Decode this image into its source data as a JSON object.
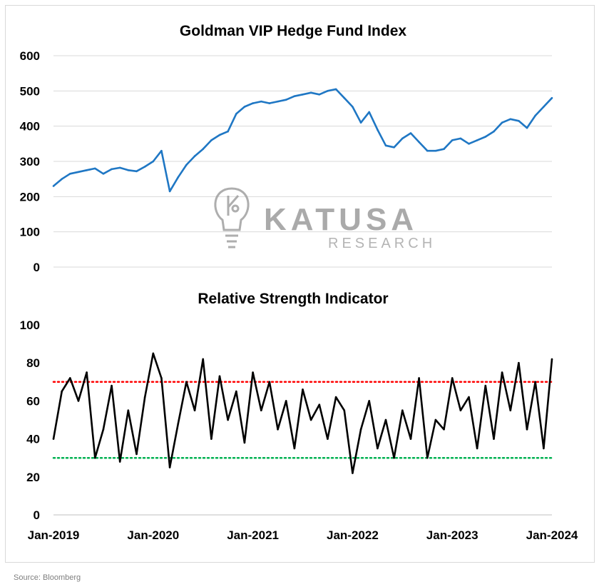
{
  "chart_data": [
    {
      "type": "line",
      "title": "Goldman VIP Hedge Fund Index",
      "xlabel": "",
      "ylabel": "",
      "ylim": [
        0,
        600
      ],
      "yticks": [
        0,
        100,
        200,
        300,
        400,
        500,
        600
      ],
      "xlim": [
        "2019-01",
        "2024-01"
      ],
      "grid": true,
      "color": "#1f77c4",
      "series": [
        {
          "x": [
            "2019-01",
            "2019-02",
            "2019-03",
            "2019-04",
            "2019-05",
            "2019-06",
            "2019-07",
            "2019-08",
            "2019-09",
            "2019-10",
            "2019-11",
            "2019-12",
            "2020-01",
            "2020-02",
            "2020-03",
            "2020-04",
            "2020-05",
            "2020-06",
            "2020-07",
            "2020-08",
            "2020-09",
            "2020-10",
            "2020-11",
            "2020-12",
            "2021-01",
            "2021-02",
            "2021-03",
            "2021-04",
            "2021-05",
            "2021-06",
            "2021-07",
            "2021-08",
            "2021-09",
            "2021-10",
            "2021-11",
            "2021-12",
            "2022-01",
            "2022-02",
            "2022-03",
            "2022-04",
            "2022-05",
            "2022-06",
            "2022-07",
            "2022-08",
            "2022-09",
            "2022-10",
            "2022-11",
            "2022-12",
            "2023-01",
            "2023-02",
            "2023-03",
            "2023-04",
            "2023-05",
            "2023-06",
            "2023-07",
            "2023-08",
            "2023-09",
            "2023-10",
            "2023-11",
            "2023-12",
            "2024-01"
          ],
          "values": [
            230,
            250,
            265,
            270,
            275,
            280,
            265,
            278,
            282,
            275,
            272,
            285,
            300,
            330,
            215,
            255,
            290,
            315,
            335,
            360,
            375,
            385,
            435,
            455,
            465,
            470,
            465,
            470,
            475,
            485,
            490,
            495,
            490,
            500,
            505,
            480,
            455,
            410,
            440,
            390,
            345,
            340,
            365,
            380,
            355,
            330,
            330,
            335,
            360,
            365,
            350,
            360,
            370,
            385,
            410,
            420,
            415,
            395,
            430,
            455,
            480
          ]
        }
      ]
    },
    {
      "type": "line",
      "title": "Relative Strength Indicator",
      "xlabel": "",
      "ylabel": "",
      "ylim": [
        0,
        100
      ],
      "yticks": [
        0,
        20,
        40,
        60,
        80,
        100
      ],
      "xticks": [
        "Jan-2019",
        "Jan-2020",
        "Jan-2021",
        "Jan-2022",
        "Jan-2023",
        "Jan-2024"
      ],
      "xlim": [
        "2019-01",
        "2024-01"
      ],
      "grid": false,
      "color": "#000000",
      "reference_lines": [
        {
          "value": 70,
          "color": "#ff0000",
          "style": "dotted"
        },
        {
          "value": 30,
          "color": "#00b050",
          "style": "dotted"
        }
      ],
      "series": [
        {
          "x": [
            "2019-01",
            "2019-02",
            "2019-03",
            "2019-04",
            "2019-05",
            "2019-06",
            "2019-07",
            "2019-08",
            "2019-09",
            "2019-10",
            "2019-11",
            "2019-12",
            "2020-01",
            "2020-02",
            "2020-03",
            "2020-04",
            "2020-05",
            "2020-06",
            "2020-07",
            "2020-08",
            "2020-09",
            "2020-10",
            "2020-11",
            "2020-12",
            "2021-01",
            "2021-02",
            "2021-03",
            "2021-04",
            "2021-05",
            "2021-06",
            "2021-07",
            "2021-08",
            "2021-09",
            "2021-10",
            "2021-11",
            "2021-12",
            "2022-01",
            "2022-02",
            "2022-03",
            "2022-04",
            "2022-05",
            "2022-06",
            "2022-07",
            "2022-08",
            "2022-09",
            "2022-10",
            "2022-11",
            "2022-12",
            "2023-01",
            "2023-02",
            "2023-03",
            "2023-04",
            "2023-05",
            "2023-06",
            "2023-07",
            "2023-08",
            "2023-09",
            "2023-10",
            "2023-11",
            "2023-12",
            "2024-01"
          ],
          "values": [
            40,
            65,
            72,
            60,
            75,
            30,
            45,
            68,
            28,
            55,
            32,
            62,
            85,
            72,
            25,
            48,
            70,
            55,
            82,
            40,
            73,
            50,
            65,
            38,
            75,
            55,
            70,
            45,
            60,
            35,
            66,
            50,
            58,
            40,
            62,
            55,
            22,
            45,
            60,
            35,
            50,
            30,
            55,
            40,
            72,
            30,
            50,
            45,
            72,
            55,
            62,
            35,
            68,
            40,
            75,
            55,
            80,
            45,
            70,
            35,
            82
          ]
        }
      ]
    }
  ],
  "watermark": {
    "brand": "KATUSA",
    "sub": "RESEARCH",
    "logo_icon": "lightbulb-k-icon"
  },
  "source": "Source: Bloomberg"
}
